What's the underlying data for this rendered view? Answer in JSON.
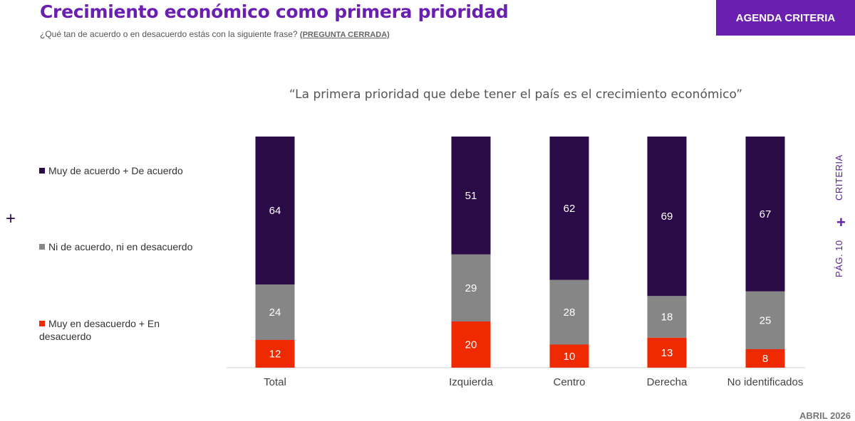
{
  "header": {
    "title": "Crecimiento económico como primera prioridad",
    "subtitle": "¿Qué tan de acuerdo o en desacuerdo estás con la siguiente frase?",
    "subtitle_tag": "(PREGUNTA CERRADA)",
    "badge": "AGENDA CRITERIA"
  },
  "side": {
    "brand": "CRITERIA",
    "page": "PÁG. 10"
  },
  "footer": {
    "date": "ABRIL 2026"
  },
  "colors": {
    "agree": "#2a0a47",
    "neutral": "#868686",
    "disagree": "#f02a00",
    "accent": "#6a1fb0"
  },
  "chart_data": {
    "type": "bar",
    "stacked": true,
    "title": "“La primera prioridad que debe tener el país es el crecimiento económico”",
    "categories": [
      "Total",
      "Izquierda",
      "Centro",
      "Derecha",
      "No identificados"
    ],
    "series": [
      {
        "name": "Muy en desacuerdo + En desacuerdo",
        "color": "#f02a00",
        "values": [
          12,
          20,
          10,
          13,
          8
        ]
      },
      {
        "name": "Ni de acuerdo, ni en desacuerdo",
        "color": "#868686",
        "values": [
          24,
          29,
          28,
          18,
          25
        ]
      },
      {
        "name": "Muy de acuerdo + De acuerdo",
        "color": "#2a0a47",
        "values": [
          64,
          51,
          62,
          69,
          67
        ]
      }
    ],
    "ylim": [
      0,
      100
    ],
    "legend": "left",
    "grid": false
  }
}
